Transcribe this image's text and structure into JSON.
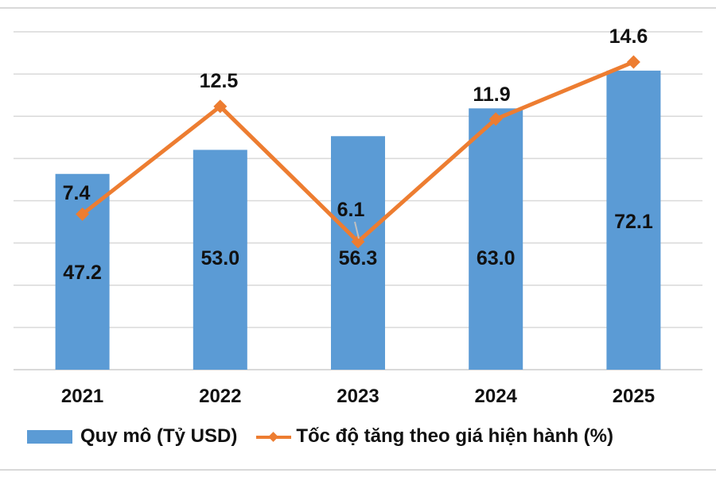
{
  "chart_data": {
    "type": "bar+line",
    "title": "",
    "categories": [
      "2021",
      "2022",
      "2023",
      "2024",
      "2025"
    ],
    "series": [
      {
        "name": "Quy mô (Tỷ USD)",
        "type": "bar",
        "axis": "primary",
        "color": "#5b9bd5",
        "values": [
          47.2,
          53.0,
          56.3,
          63.0,
          72.1
        ],
        "labels": [
          "47.2",
          "53.0",
          "56.3",
          "63.0",
          "72.1"
        ]
      },
      {
        "name": "Tốc độ tăng theo giá hiện hành (%)",
        "type": "line",
        "axis": "secondary",
        "color": "#ed7d31",
        "marker": "diamond",
        "values": [
          7.4,
          12.5,
          6.1,
          11.9,
          14.6
        ],
        "labels": [
          "7.4",
          "12.5",
          "6.1",
          "11.9",
          "14.6"
        ]
      }
    ],
    "xlabel": "",
    "ylabel": "",
    "grid": true,
    "axes_visible": false,
    "legend_position": "bottom"
  },
  "legend": {
    "bar_label": "Quy mô (Tỷ USD)",
    "line_label": "Tốc độ tăng theo giá hiện hành (%)"
  },
  "colors": {
    "bar": "#5b9bd5",
    "line": "#ed7d31",
    "grid": "#d9d9d9",
    "text": "#111111"
  }
}
